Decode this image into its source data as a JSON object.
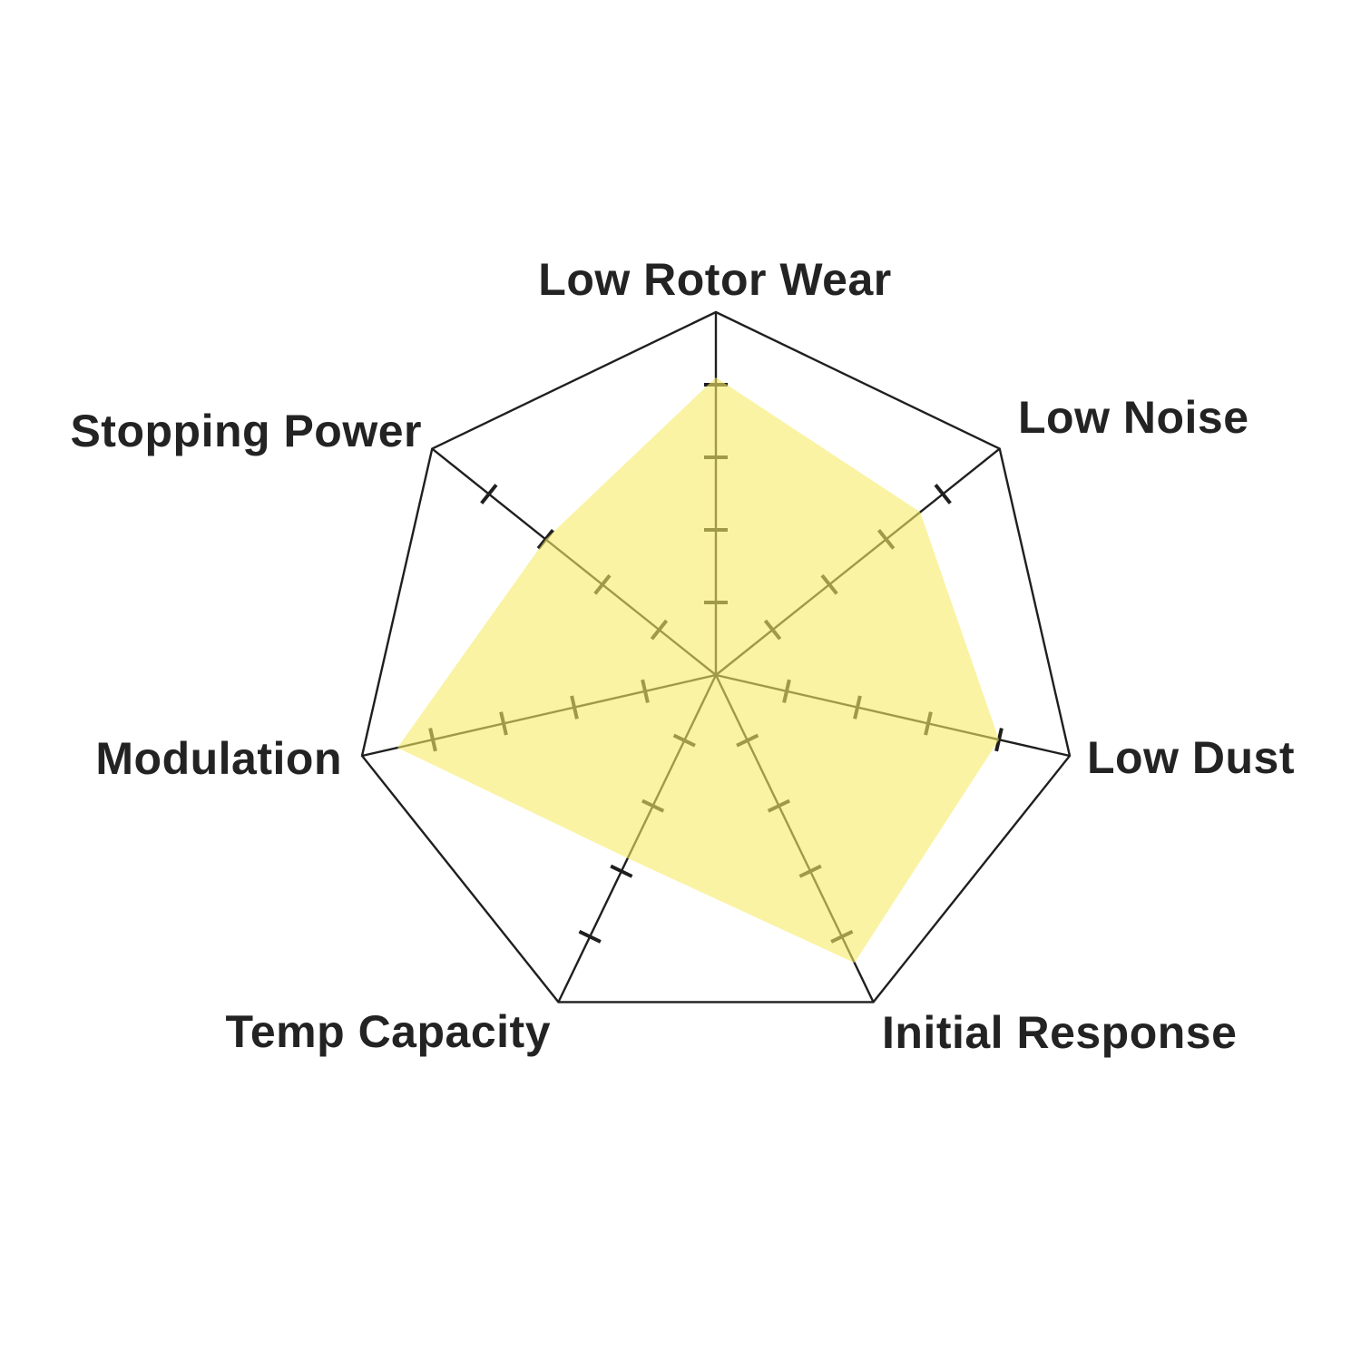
{
  "chart_data": {
    "type": "radar",
    "categories": [
      "Low Rotor Wear",
      "Low Noise",
      "Low Dust",
      "Initial Response",
      "Temp Capacity",
      "Modulation",
      "Stopping Power"
    ],
    "values": [
      4.1,
      3.6,
      4.0,
      4.4,
      2.8,
      4.5,
      3.0
    ],
    "axis_min": 0,
    "axis_max": 5,
    "tick_values": [
      1,
      2,
      3,
      4
    ],
    "start_axis": "top",
    "direction": "clockwise",
    "title": "",
    "legend": [],
    "grid": "spokes-with-ticks-and-outer-heptagon",
    "fill_color": "#f6eb66",
    "fill_opacity": 0.6,
    "line_color": "#1f1f1f",
    "label_color": "#232323",
    "background_color": "#ffffff"
  }
}
